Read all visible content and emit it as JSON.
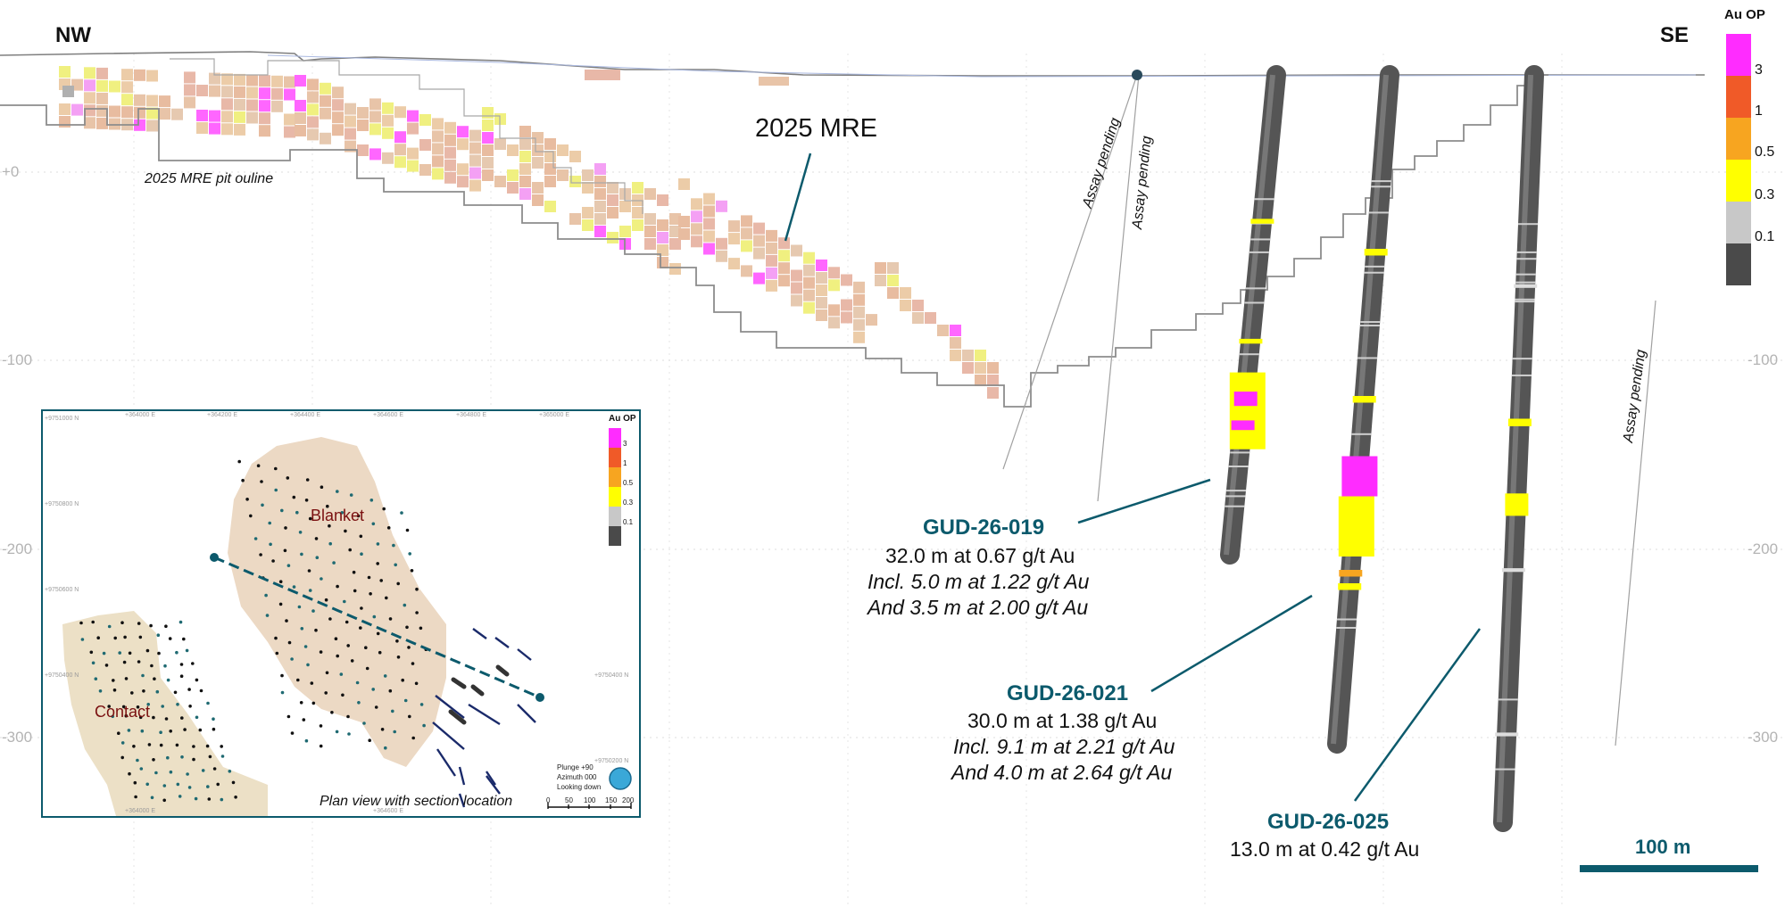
{
  "section": {
    "left_direction": "NW",
    "right_direction": "SE",
    "elevation_labels": [
      "+0",
      "-100",
      "-200",
      "-300"
    ],
    "pit_outline_label": "2025 MRE pit ouline",
    "mre_label": "2025 MRE",
    "assay_pending_label": "Assay pending",
    "scale_bar_label": "100 m"
  },
  "legend": {
    "title": "Au OP",
    "thresholds": [
      "3",
      "1",
      "0.5",
      "0.3",
      "0.1"
    ],
    "colors": [
      "#ff2cff",
      "#f05a28",
      "#f7a520",
      "#ffff00",
      "#c8c8c8",
      "#4a4a4a"
    ]
  },
  "drillholes": [
    {
      "name": "GUD-26-019",
      "lines": [
        "32.0 m at 0.67 g/t Au",
        "Incl. 5.0 m at 1.22 g/t Au",
        "And 3.5 m at 2.00 g/t Au"
      ]
    },
    {
      "name": "GUD-26-021",
      "lines": [
        "30.0 m at 1.38 g/t Au",
        "Incl. 9.1 m at 2.21 g/t Au",
        "And 4.0 m at 2.64 g/t Au"
      ]
    },
    {
      "name": "GUD-26-025",
      "lines": [
        "13.0 m at 0.42 g/t Au"
      ]
    }
  ],
  "inset": {
    "caption": "Plan view with section location",
    "blanket_label": "Blanket",
    "contact_label": "Contact",
    "legend_title": "Au OP",
    "legend_values": [
      "3",
      "1",
      "0.5",
      "0.3",
      "0.1"
    ],
    "view_info": [
      "Plunge +90",
      "Azimuth 000",
      "Looking down"
    ],
    "scale_ticks": [
      "0",
      "50",
      "100",
      "150",
      "200"
    ],
    "easting_labels": [
      "+364000 E",
      "+364200 E",
      "+364400 E",
      "+364600 E",
      "+364800 E",
      "+365000 E"
    ],
    "northing_labels": [
      "+9751000 N",
      "+9750800 N",
      "+9750600 N",
      "+9750400 N",
      "+9750200 N"
    ],
    "bottom_easting_labels": [
      "+364000 E",
      "+364600 E"
    ]
  }
}
